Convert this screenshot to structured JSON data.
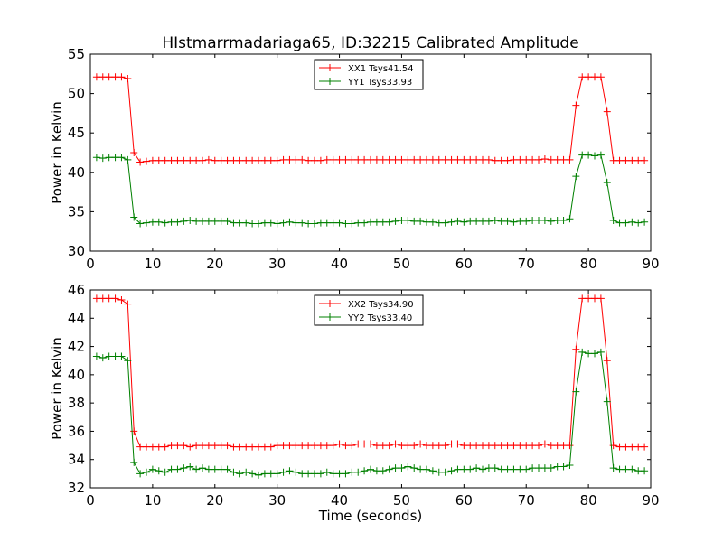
{
  "title": "HIstmarrmadariaga65, ID:32215 Calibrated Amplitude",
  "chart_data": [
    {
      "type": "line",
      "xlabel": "",
      "ylabel": "Power in Kelvin",
      "xlim": [
        0,
        90
      ],
      "ylim": [
        30,
        55
      ],
      "xticks": [
        "0",
        "10",
        "20",
        "30",
        "40",
        "50",
        "60",
        "70",
        "80",
        "90"
      ],
      "yticks": [
        "30",
        "35",
        "40",
        "45",
        "50",
        "55"
      ],
      "legend_position": "top-center",
      "series": [
        {
          "name": "XX1 Tsys41.54",
          "color": "#ff0000",
          "x": [
            1,
            2,
            3,
            4,
            5,
            6,
            7,
            8,
            9,
            10,
            11,
            12,
            13,
            14,
            15,
            16,
            17,
            18,
            19,
            20,
            21,
            22,
            23,
            24,
            25,
            26,
            27,
            28,
            29,
            30,
            31,
            32,
            33,
            34,
            35,
            36,
            37,
            38,
            39,
            40,
            41,
            42,
            43,
            44,
            45,
            46,
            47,
            48,
            49,
            50,
            51,
            52,
            53,
            54,
            55,
            56,
            57,
            58,
            59,
            60,
            61,
            62,
            63,
            64,
            65,
            66,
            67,
            68,
            69,
            70,
            71,
            72,
            73,
            74,
            75,
            76,
            77,
            78,
            79,
            80,
            81,
            82,
            83,
            84,
            85,
            86,
            87,
            88,
            89
          ],
          "y": [
            52.1,
            52.1,
            52.1,
            52.1,
            52.1,
            51.9,
            42.5,
            41.3,
            41.4,
            41.5,
            41.5,
            41.5,
            41.5,
            41.5,
            41.5,
            41.5,
            41.5,
            41.5,
            41.6,
            41.5,
            41.5,
            41.5,
            41.5,
            41.5,
            41.5,
            41.5,
            41.5,
            41.5,
            41.5,
            41.5,
            41.6,
            41.6,
            41.6,
            41.6,
            41.5,
            41.5,
            41.5,
            41.6,
            41.6,
            41.6,
            41.6,
            41.6,
            41.6,
            41.6,
            41.6,
            41.6,
            41.6,
            41.6,
            41.6,
            41.6,
            41.6,
            41.6,
            41.6,
            41.6,
            41.6,
            41.6,
            41.6,
            41.6,
            41.6,
            41.6,
            41.6,
            41.6,
            41.6,
            41.6,
            41.5,
            41.5,
            41.5,
            41.6,
            41.6,
            41.6,
            41.6,
            41.6,
            41.7,
            41.6,
            41.6,
            41.6,
            41.6,
            48.5,
            52.1,
            52.1,
            52.1,
            52.1,
            47.7,
            41.5,
            41.5,
            41.5,
            41.5,
            41.5,
            41.5
          ]
        },
        {
          "name": "YY1 Tsys33.93",
          "color": "#008000",
          "x": [
            1,
            2,
            3,
            4,
            5,
            6,
            7,
            8,
            9,
            10,
            11,
            12,
            13,
            14,
            15,
            16,
            17,
            18,
            19,
            20,
            21,
            22,
            23,
            24,
            25,
            26,
            27,
            28,
            29,
            30,
            31,
            32,
            33,
            34,
            35,
            36,
            37,
            38,
            39,
            40,
            41,
            42,
            43,
            44,
            45,
            46,
            47,
            48,
            49,
            50,
            51,
            52,
            53,
            54,
            55,
            56,
            57,
            58,
            59,
            60,
            61,
            62,
            63,
            64,
            65,
            66,
            67,
            68,
            69,
            70,
            71,
            72,
            73,
            74,
            75,
            76,
            77,
            78,
            79,
            80,
            81,
            82,
            83,
            84,
            85,
            86,
            87,
            88,
            89
          ],
          "y": [
            41.9,
            41.8,
            41.9,
            41.9,
            41.9,
            41.6,
            34.3,
            33.5,
            33.6,
            33.7,
            33.7,
            33.6,
            33.7,
            33.7,
            33.8,
            33.9,
            33.8,
            33.8,
            33.8,
            33.8,
            33.8,
            33.8,
            33.6,
            33.6,
            33.6,
            33.5,
            33.5,
            33.6,
            33.6,
            33.5,
            33.6,
            33.7,
            33.6,
            33.6,
            33.5,
            33.5,
            33.6,
            33.6,
            33.6,
            33.6,
            33.5,
            33.5,
            33.6,
            33.6,
            33.7,
            33.7,
            33.7,
            33.7,
            33.8,
            33.9,
            33.9,
            33.8,
            33.8,
            33.7,
            33.7,
            33.6,
            33.6,
            33.7,
            33.8,
            33.7,
            33.8,
            33.8,
            33.8,
            33.8,
            33.9,
            33.8,
            33.8,
            33.7,
            33.8,
            33.8,
            33.9,
            33.9,
            33.9,
            33.8,
            33.9,
            33.9,
            34.1,
            39.5,
            42.2,
            42.2,
            42.1,
            42.2,
            38.7,
            33.9,
            33.6,
            33.6,
            33.7,
            33.6,
            33.7
          ]
        }
      ]
    },
    {
      "type": "line",
      "xlabel": "Time (seconds)",
      "ylabel": "Power in Kelvin",
      "xlim": [
        0,
        90
      ],
      "ylim": [
        32,
        46
      ],
      "xticks": [
        "0",
        "10",
        "20",
        "30",
        "40",
        "50",
        "60",
        "70",
        "80",
        "90"
      ],
      "yticks": [
        "32",
        "34",
        "36",
        "38",
        "40",
        "42",
        "44",
        "46"
      ],
      "legend_position": "top-center",
      "series": [
        {
          "name": "XX2 Tsys34.90",
          "color": "#ff0000",
          "x": [
            1,
            2,
            3,
            4,
            5,
            6,
            7,
            8,
            9,
            10,
            11,
            12,
            13,
            14,
            15,
            16,
            17,
            18,
            19,
            20,
            21,
            22,
            23,
            24,
            25,
            26,
            27,
            28,
            29,
            30,
            31,
            32,
            33,
            34,
            35,
            36,
            37,
            38,
            39,
            40,
            41,
            42,
            43,
            44,
            45,
            46,
            47,
            48,
            49,
            50,
            51,
            52,
            53,
            54,
            55,
            56,
            57,
            58,
            59,
            60,
            61,
            62,
            63,
            64,
            65,
            66,
            67,
            68,
            69,
            70,
            71,
            72,
            73,
            74,
            75,
            76,
            77,
            78,
            79,
            80,
            81,
            82,
            83,
            84,
            85,
            86,
            87,
            88,
            89
          ],
          "y": [
            45.4,
            45.4,
            45.4,
            45.4,
            45.3,
            45.0,
            36.0,
            34.9,
            34.9,
            34.9,
            34.9,
            34.9,
            35.0,
            35.0,
            35.0,
            34.9,
            35.0,
            35.0,
            35.0,
            35.0,
            35.0,
            35.0,
            34.9,
            34.9,
            34.9,
            34.9,
            34.9,
            34.9,
            34.9,
            35.0,
            35.0,
            35.0,
            35.0,
            35.0,
            35.0,
            35.0,
            35.0,
            35.0,
            35.0,
            35.1,
            35.0,
            35.0,
            35.1,
            35.1,
            35.1,
            35.0,
            35.0,
            35.0,
            35.1,
            35.0,
            35.0,
            35.0,
            35.1,
            35.0,
            35.0,
            35.0,
            35.0,
            35.1,
            35.1,
            35.0,
            35.0,
            35.0,
            35.0,
            35.0,
            35.0,
            35.0,
            35.0,
            35.0,
            35.0,
            35.0,
            35.0,
            35.0,
            35.1,
            35.0,
            35.0,
            35.0,
            35.0,
            41.8,
            45.4,
            45.4,
            45.4,
            45.4,
            41.0,
            35.0,
            34.9,
            34.9,
            34.9,
            34.9,
            34.9
          ]
        },
        {
          "name": "YY2 Tsys33.40",
          "color": "#008000",
          "x": [
            1,
            2,
            3,
            4,
            5,
            6,
            7,
            8,
            9,
            10,
            11,
            12,
            13,
            14,
            15,
            16,
            17,
            18,
            19,
            20,
            21,
            22,
            23,
            24,
            25,
            26,
            27,
            28,
            29,
            30,
            31,
            32,
            33,
            34,
            35,
            36,
            37,
            38,
            39,
            40,
            41,
            42,
            43,
            44,
            45,
            46,
            47,
            48,
            49,
            50,
            51,
            52,
            53,
            54,
            55,
            56,
            57,
            58,
            59,
            60,
            61,
            62,
            63,
            64,
            65,
            66,
            67,
            68,
            69,
            70,
            71,
            72,
            73,
            74,
            75,
            76,
            77,
            78,
            79,
            80,
            81,
            82,
            83,
            84,
            85,
            86,
            87,
            88,
            89
          ],
          "y": [
            41.3,
            41.2,
            41.3,
            41.3,
            41.3,
            41.0,
            33.8,
            33.0,
            33.1,
            33.3,
            33.2,
            33.1,
            33.3,
            33.3,
            33.4,
            33.5,
            33.3,
            33.4,
            33.3,
            33.3,
            33.3,
            33.3,
            33.1,
            33.0,
            33.1,
            33.0,
            32.9,
            33.0,
            33.0,
            33.0,
            33.1,
            33.2,
            33.1,
            33.0,
            33.0,
            33.0,
            33.0,
            33.1,
            33.0,
            33.0,
            33.0,
            33.1,
            33.1,
            33.2,
            33.3,
            33.2,
            33.2,
            33.3,
            33.4,
            33.4,
            33.5,
            33.4,
            33.3,
            33.3,
            33.2,
            33.1,
            33.1,
            33.2,
            33.3,
            33.3,
            33.3,
            33.4,
            33.3,
            33.4,
            33.4,
            33.3,
            33.3,
            33.3,
            33.3,
            33.3,
            33.4,
            33.4,
            33.4,
            33.4,
            33.5,
            33.5,
            33.6,
            38.8,
            41.6,
            41.5,
            41.5,
            41.6,
            38.1,
            33.4,
            33.3,
            33.3,
            33.3,
            33.2,
            33.2
          ]
        }
      ]
    }
  ]
}
